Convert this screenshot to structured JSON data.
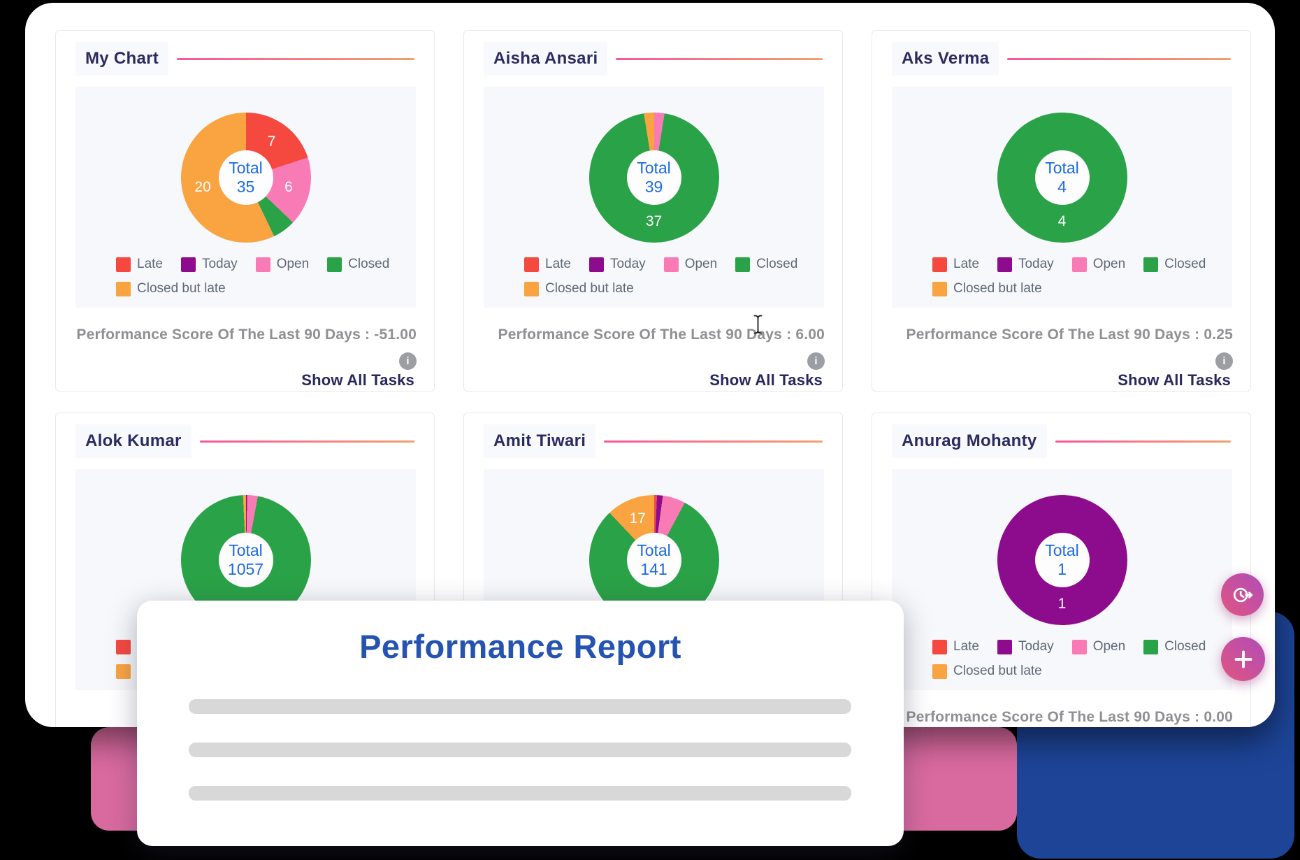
{
  "overlay": {
    "title": "Performance Report",
    "placeholder_bar_count": 3
  },
  "misc": {
    "info_glyph": "i"
  },
  "legend_items": [
    {
      "label": "Late",
      "color": "#f5493f"
    },
    {
      "label": "Today",
      "color": "#8d0c8d"
    },
    {
      "label": "Open",
      "color": "#f97bb5"
    },
    {
      "label": "Closed",
      "color": "#2aa247"
    },
    {
      "label": "Closed but late",
      "color": "#f9a440"
    }
  ],
  "colors": {
    "total_text": "#1c6be0",
    "title_navy": "#2b2b5f",
    "score_gray": "#8f9094",
    "overlay_title_blue": "#2553b1",
    "header_gradient_start": "#f7569f",
    "header_gradient_end": "#f0a26b",
    "bg_pink": "#d96a9f",
    "bg_blue": "#1d4497",
    "fab_gradient_start": "#e1557f",
    "fab_gradient_end": "#b04cba"
  },
  "cards": [
    {
      "title": "My Chart",
      "total_label": "Total",
      "total": "35",
      "score_text": "Performance Score Of The Last 90 Days : -51.00",
      "show_all": "Show All Tasks",
      "chart_data": {
        "type": "donut",
        "segments": [
          {
            "label": "Late",
            "value": 7,
            "color": "#f5493f",
            "show_value": true
          },
          {
            "label": "Today",
            "value": 0,
            "color": "#8d0c8d",
            "show_value": false
          },
          {
            "label": "Open",
            "value": 6,
            "color": "#f97bb5",
            "show_value": true
          },
          {
            "label": "Closed",
            "value": 2,
            "color": "#2aa247",
            "show_value": false
          },
          {
            "label": "Closed but late",
            "value": 20,
            "color": "#f9a440",
            "show_value": true
          }
        ]
      }
    },
    {
      "title": "Aisha Ansari",
      "total_label": "Total",
      "total": "39",
      "score_text": "Performance Score Of The Last 90 Days : 6.00",
      "show_all": "Show All Tasks",
      "chart_data": {
        "type": "donut",
        "segments": [
          {
            "label": "Late",
            "value": 0,
            "color": "#f5493f",
            "show_value": false
          },
          {
            "label": "Today",
            "value": 0,
            "color": "#8d0c8d",
            "show_value": false
          },
          {
            "label": "Open",
            "value": 1,
            "color": "#f97bb5",
            "show_value": false
          },
          {
            "label": "Closed",
            "value": 37,
            "color": "#2aa247",
            "show_value": true
          },
          {
            "label": "Closed but late",
            "value": 1,
            "color": "#f9a440",
            "show_value": false
          }
        ]
      }
    },
    {
      "title": "Aks Verma",
      "total_label": "Total",
      "total": "4",
      "score_text": "Performance Score Of The Last 90 Days : 0.25",
      "show_all": "Show All Tasks",
      "chart_data": {
        "type": "donut",
        "segments": [
          {
            "label": "Late",
            "value": 0,
            "color": "#f5493f",
            "show_value": false
          },
          {
            "label": "Today",
            "value": 0,
            "color": "#8d0c8d",
            "show_value": false
          },
          {
            "label": "Open",
            "value": 0,
            "color": "#f97bb5",
            "show_value": false
          },
          {
            "label": "Closed",
            "value": 4,
            "color": "#2aa247",
            "show_value": true
          },
          {
            "label": "Closed but late",
            "value": 0,
            "color": "#f9a440",
            "show_value": false
          }
        ]
      }
    },
    {
      "title": "Alok Kumar",
      "total_label": "Total",
      "total": "1057",
      "score_text": "",
      "show_all": "",
      "chart_data": {
        "type": "donut",
        "segments": [
          {
            "label": "Late",
            "value": 0,
            "color": "#f5493f",
            "show_value": false
          },
          {
            "label": "Today",
            "value": 3,
            "color": "#8d0c8d",
            "show_value": false
          },
          {
            "label": "Open",
            "value": 28,
            "color": "#f97bb5",
            "show_value": false
          },
          {
            "label": "Closed",
            "value": 1018,
            "color": "#2aa247",
            "show_value": false
          },
          {
            "label": "Closed but late",
            "value": 8,
            "color": "#f9a440",
            "show_value": false
          }
        ]
      }
    },
    {
      "title": "Amit Tiwari",
      "total_label": "Total",
      "total": "141",
      "score_text": "",
      "show_all": "",
      "chart_data": {
        "type": "donut",
        "segments": [
          {
            "label": "Late",
            "value": 1,
            "color": "#f5493f",
            "show_value": false
          },
          {
            "label": "Today",
            "value": 2,
            "color": "#8d0c8d",
            "show_value": false
          },
          {
            "label": "Open",
            "value": 8,
            "color": "#f97bb5",
            "show_value": false
          },
          {
            "label": "Closed",
            "value": 113,
            "color": "#2aa247",
            "show_value": false
          },
          {
            "label": "Closed but late",
            "value": 17,
            "color": "#f9a440",
            "show_value": true
          }
        ]
      }
    },
    {
      "title": "Anurag Mohanty",
      "total_label": "Total",
      "total": "1",
      "score_text": "Performance Score Of The Last 90 Days : 0.00",
      "show_all": "Show All Tasks",
      "chart_data": {
        "type": "donut",
        "segments": [
          {
            "label": "Late",
            "value": 0,
            "color": "#f5493f",
            "show_value": false
          },
          {
            "label": "Today",
            "value": 1,
            "color": "#8d0c8d",
            "show_value": true
          },
          {
            "label": "Open",
            "value": 0,
            "color": "#f97bb5",
            "show_value": false
          },
          {
            "label": "Closed",
            "value": 0,
            "color": "#2aa247",
            "show_value": false
          },
          {
            "label": "Closed but late",
            "value": 0,
            "color": "#f9a440",
            "show_value": false
          }
        ]
      }
    }
  ]
}
